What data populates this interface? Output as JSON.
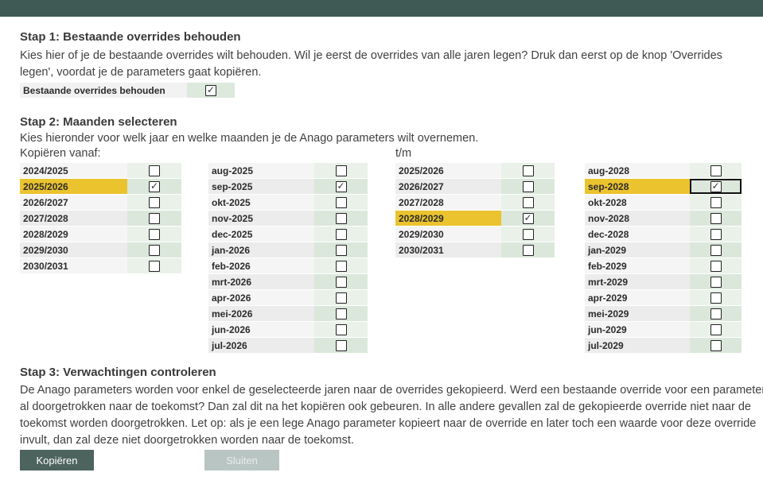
{
  "colors": {
    "header_bar": "#3f5a55",
    "highlight_yellow": "#eac32f",
    "cell_green_light": "#e9f1e9",
    "cell_green_dark": "#dbe7db",
    "cell_selected": "#b7c2b5",
    "button_primary": "#4d635e",
    "button_disabled": "#b9c5c2"
  },
  "step1": {
    "heading": "Stap 1: Bestaande overrides behouden",
    "description": "Kies hier of je de bestaande overrides wilt behouden. Wil je eerst de overrides van alle jaren legen? Druk dan eerst op de knop 'Overrides legen', voordat je de parameters gaat kopiëren.",
    "row": {
      "label": "Bestaande overrides behouden",
      "checked": true
    }
  },
  "step2": {
    "heading": "Stap 2: Maanden selecteren",
    "description": "Kies hieronder voor welk jaar en welke maanden je de Anago parameters wilt overnemen.",
    "from_label": "Kopiëren vanaf:",
    "to_label": "t/m",
    "tables": {
      "from_years": {
        "rows": [
          {
            "label": "2024/2025"
          },
          {
            "label": "2025/2026",
            "checked": true,
            "highlight": true
          },
          {
            "label": "2026/2027"
          },
          {
            "label": "2027/2028"
          },
          {
            "label": "2028/2029"
          },
          {
            "label": "2029/2030"
          },
          {
            "label": "2030/2031"
          }
        ]
      },
      "from_months": {
        "rows": [
          {
            "label": "aug-2025"
          },
          {
            "label": "sep-2025",
            "checked": true
          },
          {
            "label": "okt-2025"
          },
          {
            "label": "nov-2025"
          },
          {
            "label": "dec-2025"
          },
          {
            "label": "jan-2026"
          },
          {
            "label": "feb-2026"
          },
          {
            "label": "mrt-2026"
          },
          {
            "label": "apr-2026"
          },
          {
            "label": "mei-2026"
          },
          {
            "label": "jun-2026"
          },
          {
            "label": "jul-2026"
          }
        ]
      },
      "to_years": {
        "rows": [
          {
            "label": "2025/2026"
          },
          {
            "label": "2026/2027"
          },
          {
            "label": "2027/2028"
          },
          {
            "label": "2028/2029",
            "checked": true,
            "highlight": true
          },
          {
            "label": "2029/2030"
          },
          {
            "label": "2030/2031"
          }
        ]
      },
      "to_months": {
        "rows": [
          {
            "label": "aug-2028"
          },
          {
            "label": "sep-2028",
            "checked": true,
            "highlight": true,
            "focus": true
          },
          {
            "label": "okt-2028"
          },
          {
            "label": "nov-2028"
          },
          {
            "label": "dec-2028"
          },
          {
            "label": "jan-2029"
          },
          {
            "label": "feb-2029"
          },
          {
            "label": "mrt-2029"
          },
          {
            "label": "apr-2029"
          },
          {
            "label": "mei-2029"
          },
          {
            "label": "jun-2029"
          },
          {
            "label": "jul-2029"
          }
        ]
      }
    }
  },
  "step3": {
    "heading": "Stap 3: Verwachtingen controleren",
    "description": "De Anago parameters worden voor enkel de geselecteerde jaren naar de overrides gekopieerd. Werd een bestaande override voor een parameter al doorgetrokken naar de toekomst? Dan zal dit na het kopiëren ook gebeuren. In alle andere gevallen zal de gekopieerde override niet naar de toekomst worden doorgetrokken. Let op: als je een lege Anago parameter kopieert naar de override en later toch een waarde voor deze override invult, dan zal deze niet doorgetrokken worden naar de toekomst."
  },
  "buttons": {
    "copy": {
      "label": "Kopiëren",
      "enabled": true
    },
    "close": {
      "label": "Sluiten",
      "enabled": false
    }
  }
}
